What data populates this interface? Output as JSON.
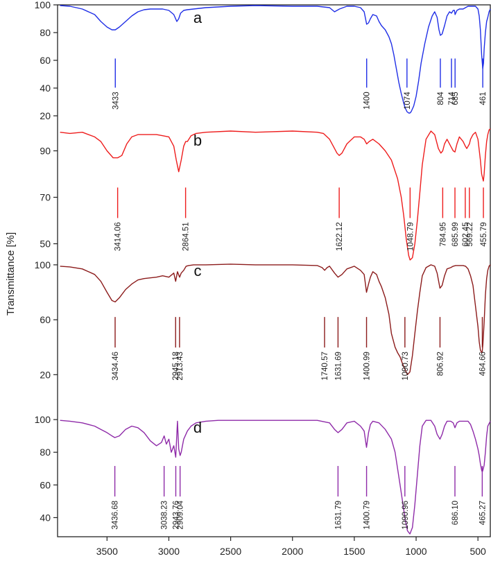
{
  "chart_data": {
    "type": "line",
    "xlabel": "",
    "ylabel": "Transmittance [%]",
    "xlim": [
      3900,
      400
    ],
    "x_reversed": true,
    "x_ticks": [
      3500,
      3000,
      2500,
      2000,
      1500,
      1000,
      500
    ],
    "panels": [
      {
        "label": "a",
        "color": "#1f2ee6",
        "ylim": [
          10,
          100
        ],
        "y_ticks": [
          100,
          80,
          60,
          40,
          20
        ],
        "spectrum": {
          "x": [
            3880,
            3800,
            3700,
            3600,
            3550,
            3500,
            3460,
            3433,
            3400,
            3350,
            3300,
            3250,
            3200,
            3150,
            3100,
            3050,
            3000,
            2960,
            2935,
            2920,
            2905,
            2880,
            2850,
            2800,
            2700,
            2500,
            2300,
            2000,
            1800,
            1700,
            1660,
            1620,
            1560,
            1500,
            1450,
            1420,
            1400,
            1385,
            1370,
            1350,
            1320,
            1300,
            1280,
            1250,
            1220,
            1200,
            1180,
            1160,
            1140,
            1120,
            1100,
            1090,
            1074,
            1060,
            1050,
            1040,
            1020,
            1000,
            980,
            960,
            930,
            900,
            870,
            850,
            830,
            815,
            804,
            790,
            770,
            750,
            730,
            714,
            700,
            690,
            685,
            670,
            650,
            620,
            600,
            580,
            560,
            540,
            520,
            500,
            490,
            480,
            470,
            461,
            455,
            450,
            440,
            430,
            420,
            410,
            400
          ],
          "y": [
            99.5,
            99,
            97,
            93,
            88,
            84,
            82,
            82,
            84,
            88,
            92,
            95,
            96.5,
            97,
            97,
            97,
            96,
            93,
            88,
            90,
            94,
            96,
            96.5,
            97,
            98,
            99,
            99.5,
            99,
            99,
            98,
            95,
            97,
            99,
            99,
            98,
            95,
            86,
            87,
            90,
            93,
            92,
            88,
            85,
            82,
            77,
            72,
            64,
            54,
            44,
            36,
            29,
            26,
            23,
            22,
            22,
            23,
            27,
            34,
            45,
            58,
            72,
            84,
            92,
            95,
            91,
            82,
            78,
            79,
            85,
            92,
            95,
            94,
            96,
            96,
            93,
            96,
            97,
            97,
            98,
            99,
            99,
            99,
            99,
            97,
            92,
            82,
            64,
            54,
            58,
            68,
            80,
            88,
            91,
            95,
            97
          ]
        },
        "peaks": [
          {
            "x": 3433,
            "label": "3433"
          },
          {
            "x": 1400,
            "label": "1400"
          },
          {
            "x": 1074,
            "label": "1074"
          },
          {
            "x": 804,
            "label": "804"
          },
          {
            "x": 714,
            "label": "714"
          },
          {
            "x": 685,
            "label": "685"
          },
          {
            "x": 461,
            "label": "461"
          }
        ]
      },
      {
        "label": "b",
        "color": "#ee1c1c",
        "ylim": [
          40,
          100
        ],
        "y_ticks": [
          90,
          70,
          50
        ],
        "spectrum": {
          "x": [
            3880,
            3800,
            3700,
            3600,
            3550,
            3500,
            3450,
            3414,
            3380,
            3340,
            3300,
            3250,
            3200,
            3150,
            3100,
            3050,
            3000,
            2960,
            2940,
            2920,
            2900,
            2880,
            2864,
            2850,
            2820,
            2780,
            2700,
            2500,
            2300,
            2000,
            1800,
            1750,
            1700,
            1660,
            1640,
            1622,
            1600,
            1560,
            1500,
            1450,
            1420,
            1400,
            1380,
            1350,
            1300,
            1250,
            1200,
            1150,
            1120,
            1100,
            1080,
            1060,
            1049,
            1030,
            1010,
            990,
            970,
            950,
            920,
            880,
            850,
            820,
            800,
            785,
            770,
            750,
            720,
            700,
            686,
            670,
            650,
            620,
            602,
            590,
            569,
            560,
            540,
            520,
            500,
            480,
            470,
            456,
            450,
            440,
            430,
            420,
            410,
            400
          ],
          "y": [
            98,
            97.5,
            98,
            96,
            94,
            90,
            87,
            87,
            88,
            93,
            96,
            97,
            97,
            97,
            97,
            96.5,
            96,
            92,
            86,
            81,
            86,
            92,
            94,
            94,
            96.5,
            97.5,
            98,
            98.5,
            98,
            98.5,
            98,
            97.5,
            95,
            91,
            89,
            88,
            89,
            93,
            96,
            96,
            95,
            93,
            94,
            95,
            93,
            90,
            86,
            78,
            70,
            62,
            52,
            45,
            43,
            44,
            50,
            60,
            72,
            84,
            95,
            98.5,
            97,
            91,
            89,
            90,
            93,
            95,
            92,
            90,
            89.5,
            93,
            96,
            94,
            92,
            91,
            93,
            95,
            97,
            98,
            95,
            86,
            80,
            77,
            80,
            88,
            94,
            97,
            99,
            99.5
          ]
        },
        "peaks": [
          {
            "x": 3414.06,
            "label": "3414.06"
          },
          {
            "x": 2864.51,
            "label": "2864.51"
          },
          {
            "x": 1622.12,
            "label": "1622.12"
          },
          {
            "x": 1048.79,
            "label": "1048.79"
          },
          {
            "x": 784.95,
            "label": "784.95"
          },
          {
            "x": 685.99,
            "label": "685.99"
          },
          {
            "x": 602.45,
            "label": "602.45"
          },
          {
            "x": 569.22,
            "label": "569.22"
          },
          {
            "x": 455.79,
            "label": "455.79"
          }
        ]
      },
      {
        "label": "c",
        "color": "#8b1a1a",
        "ylim": [
          5,
          105
        ],
        "y_ticks": [
          100,
          60,
          20
        ],
        "spectrum": {
          "x": [
            3880,
            3800,
            3700,
            3600,
            3550,
            3500,
            3460,
            3434,
            3400,
            3350,
            3300,
            3250,
            3200,
            3150,
            3100,
            3050,
            3000,
            2960,
            2945,
            2930,
            2913,
            2900,
            2880,
            2860,
            2840,
            2800,
            2700,
            2500,
            2300,
            2000,
            1800,
            1760,
            1740,
            1720,
            1700,
            1660,
            1632,
            1600,
            1560,
            1500,
            1450,
            1420,
            1401,
            1385,
            1370,
            1350,
            1320,
            1300,
            1280,
            1250,
            1220,
            1200,
            1170,
            1150,
            1130,
            1110,
            1091,
            1070,
            1050,
            1030,
            1010,
            990,
            970,
            950,
            920,
            880,
            850,
            830,
            807,
            790,
            770,
            750,
            720,
            700,
            680,
            650,
            620,
            600,
            580,
            560,
            540,
            520,
            500,
            490,
            480,
            470,
            465,
            460,
            450,
            440,
            430,
            420,
            410,
            400
          ],
          "y": [
            99,
            98.5,
            97,
            93,
            88,
            80,
            74,
            73,
            76,
            82,
            86,
            89,
            90,
            90.5,
            91,
            92,
            91,
            94,
            88,
            95,
            91,
            94,
            96,
            99,
            99.5,
            100,
            100,
            100.5,
            100,
            100,
            99.5,
            98,
            96,
            98,
            99,
            94,
            91,
            93,
            97,
            99,
            96,
            93,
            80,
            86,
            91,
            95,
            93,
            88,
            84,
            76,
            64,
            50,
            40,
            36,
            33,
            28,
            24,
            20,
            22,
            34,
            50,
            66,
            80,
            92,
            98,
            100,
            99,
            94,
            83,
            85,
            92,
            97,
            98,
            99,
            99.5,
            99.5,
            99.5,
            99,
            97,
            92,
            85,
            70,
            55,
            44,
            38,
            36,
            37,
            42,
            58,
            78,
            90,
            96,
            99,
            100
          ]
        },
        "peaks": [
          {
            "x": 3434.46,
            "label": "3434.46"
          },
          {
            "x": 2945.18,
            "label": "2945.18"
          },
          {
            "x": 2913.43,
            "label": "2913.43"
          },
          {
            "x": 1740.57,
            "label": "1740.57"
          },
          {
            "x": 1631.69,
            "label": "1631.69"
          },
          {
            "x": 1400.99,
            "label": "1400.99"
          },
          {
            "x": 1090.73,
            "label": "1090.73"
          },
          {
            "x": 806.92,
            "label": "806.92"
          },
          {
            "x": 464.66,
            "label": "464.66"
          }
        ]
      },
      {
        "label": "d",
        "color": "#8e2aa8",
        "ylim": [
          30,
          103
        ],
        "y_ticks": [
          100,
          80,
          60,
          40
        ],
        "spectrum": {
          "x": [
            3880,
            3800,
            3700,
            3600,
            3550,
            3500,
            3460,
            3437,
            3400,
            3350,
            3300,
            3250,
            3200,
            3150,
            3100,
            3060,
            3038,
            3020,
            3000,
            2980,
            2960,
            2944,
            2930,
            2920,
            2909,
            2900,
            2880,
            2850,
            2820,
            2780,
            2700,
            2600,
            2500,
            2300,
            2000,
            1800,
            1700,
            1660,
            1632,
            1600,
            1560,
            1500,
            1450,
            1420,
            1401,
            1385,
            1370,
            1350,
            1300,
            1250,
            1200,
            1170,
            1150,
            1130,
            1110,
            1091,
            1070,
            1050,
            1030,
            1010,
            990,
            970,
            950,
            920,
            880,
            850,
            830,
            807,
            790,
            770,
            750,
            720,
            700,
            686,
            670,
            650,
            620,
            600,
            580,
            560,
            540,
            520,
            500,
            490,
            480,
            470,
            465,
            460,
            450,
            440,
            430,
            420,
            400
          ],
          "y": [
            99.5,
            99,
            98,
            96,
            94,
            92,
            90,
            89,
            90,
            94,
            96,
            95,
            92,
            87,
            84,
            86,
            90,
            85,
            88,
            80,
            84,
            77,
            99,
            82,
            78,
            80,
            88,
            93,
            96,
            98,
            99,
            99.5,
            99.5,
            99.5,
            99.5,
            99.5,
            98,
            94,
            92,
            94,
            98,
            99,
            96,
            93,
            83,
            92,
            97,
            99,
            98,
            94,
            88,
            80,
            70,
            60,
            50,
            40,
            32,
            30,
            34,
            48,
            66,
            84,
            96,
            99.5,
            99.5,
            96,
            91,
            88,
            91,
            96,
            99,
            99,
            98,
            95,
            98,
            99,
            99,
            99,
            99,
            97,
            93,
            88,
            82,
            78,
            73,
            69,
            68,
            69,
            72,
            80,
            90,
            96,
            99
          ]
        },
        "peaks": [
          {
            "x": 3436.68,
            "label": "3436.68"
          },
          {
            "x": 3038.23,
            "label": "3038.23"
          },
          {
            "x": 2943.76,
            "label": "2943.76"
          },
          {
            "x": 2909.04,
            "label": "2909.04"
          },
          {
            "x": 1631.79,
            "label": "1631.79"
          },
          {
            "x": 1400.79,
            "label": "1400.79"
          },
          {
            "x": 1090.96,
            "label": "1090.96"
          },
          {
            "x": 686.1,
            "label": "686.10"
          },
          {
            "x": 465.27,
            "label": "465.27"
          }
        ]
      }
    ]
  }
}
